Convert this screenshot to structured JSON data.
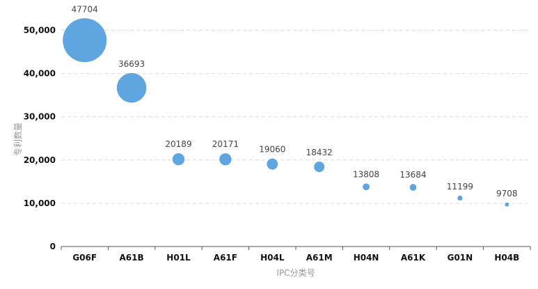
{
  "chart_data": {
    "type": "scatter",
    "subtype": "bubble",
    "xlabel": "IPC分类号",
    "ylabel": "专利数量",
    "categories": [
      "G06F",
      "A61B",
      "H01L",
      "A61F",
      "H04L",
      "A61M",
      "H04N",
      "A61K",
      "G01N",
      "H04B"
    ],
    "values": [
      47704,
      36693,
      20189,
      20171,
      19060,
      18432,
      13808,
      13684,
      11199,
      9708
    ],
    "value_labels": [
      "47704",
      "36693",
      "20189",
      "20171",
      "19060",
      "18432",
      "13808",
      "13684",
      "11199",
      "9708"
    ],
    "yticks": [
      0,
      10000,
      20000,
      30000,
      40000,
      50000
    ],
    "ytick_labels": [
      "0",
      "10,000",
      "20,000",
      "30,000",
      "40,000",
      "50,000"
    ],
    "ylim": [
      0,
      55000
    ],
    "grid": true,
    "bubble_color": "#5fa5e0",
    "grid_color": "#d9d9d9",
    "axis_color": "#555555"
  }
}
